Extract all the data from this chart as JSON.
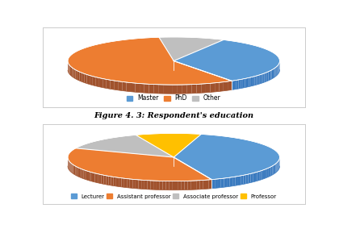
{
  "chart1": {
    "labels": [
      "Master",
      "PhD",
      "Other"
    ],
    "values": [
      33,
      57,
      10
    ],
    "colors": [
      "#5B9BD5",
      "#ED7D31",
      "#BFBFBF"
    ],
    "side_colors": [
      "#3A7ABF",
      "#A0522D",
      "#909090"
    ],
    "legend_labels": [
      "Master",
      "PhD",
      "Other"
    ],
    "start_angle": 62
  },
  "chart2": {
    "labels": [
      "Lecturer",
      "Assistant professor",
      "Associate professor",
      "Professor"
    ],
    "values": [
      40,
      37,
      13,
      10
    ],
    "colors": [
      "#5B9BD5",
      "#ED7D31",
      "#BFBFBF",
      "#FFC000"
    ],
    "side_colors": [
      "#3A7ABF",
      "#A0522D",
      "#909090",
      "#C09000"
    ],
    "legend_labels": [
      "Lecturer",
      "Assistant professor",
      "Associate professor",
      "Professor"
    ],
    "start_angle": 75
  },
  "figure_caption": "Figure 4. 3: Respondent's education",
  "background_color": "#FFFFFF",
  "border_color": "#CCCCCC"
}
